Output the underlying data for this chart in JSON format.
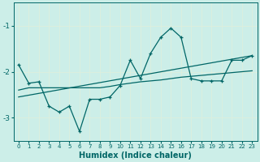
{
  "xlabel": "Humidex (Indice chaleur)",
  "background_color": "#cceee8",
  "grid_color": "#aaddcc",
  "line_color": "#006666",
  "xlim": [
    -0.5,
    23.5
  ],
  "ylim": [
    -3.5,
    -0.5
  ],
  "yticks": [
    -3,
    -2,
    -1
  ],
  "xticks": [
    0,
    1,
    2,
    3,
    4,
    5,
    6,
    7,
    8,
    9,
    10,
    11,
    12,
    13,
    14,
    15,
    16,
    17,
    18,
    19,
    20,
    21,
    22,
    23
  ],
  "series1_x": [
    0,
    1,
    2,
    3,
    4,
    5,
    6,
    7,
    8,
    9,
    10,
    11,
    12,
    13,
    14,
    15,
    16,
    17,
    18,
    19,
    20,
    21,
    22,
    23
  ],
  "series1_y": [
    -1.85,
    -2.25,
    -2.22,
    -2.75,
    -2.88,
    -2.75,
    -3.3,
    -2.6,
    -2.6,
    -2.55,
    -2.3,
    -1.75,
    -2.15,
    -1.6,
    -1.25,
    -1.05,
    -1.25,
    -2.15,
    -2.2,
    -2.2,
    -2.2,
    -1.75,
    -1.75,
    -1.65
  ],
  "series2_x": [
    0,
    23
  ],
  "series2_y": [
    -2.55,
    -1.65
  ],
  "series3_x": [
    0,
    1,
    2,
    3,
    4,
    5,
    6,
    7,
    8,
    9,
    10,
    11,
    12,
    13,
    14,
    15,
    16,
    17,
    18,
    19,
    20,
    21,
    22,
    23
  ],
  "series3_y": [
    -2.4,
    -2.35,
    -2.35,
    -2.35,
    -2.35,
    -2.35,
    -2.35,
    -2.35,
    -2.35,
    -2.32,
    -2.28,
    -2.25,
    -2.22,
    -2.2,
    -2.18,
    -2.15,
    -2.12,
    -2.1,
    -2.08,
    -2.06,
    -2.04,
    -2.02,
    -2.0,
    -1.98
  ]
}
